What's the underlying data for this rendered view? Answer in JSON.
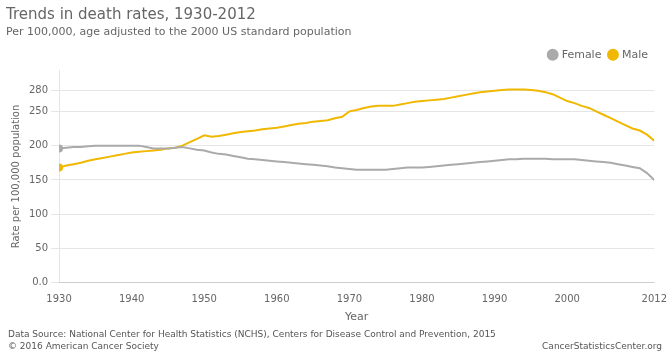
{
  "chart_data": {
    "type": "line",
    "title": "Trends in death rates, 1930-2012",
    "subtitle": "Per 100,000, age adjusted to the 2000 US standard population",
    "xlabel": "Year",
    "ylabel": "Rate per 100,000 population",
    "annotations": [
      "Data Source: National Center for Health Statistics (NCHS), Centers for Disease Control and Prevention, 2015",
      "© 2016 American Cancer Society",
      "CancerStatisticsCenter.org"
    ],
    "x": [
      1930,
      1931,
      1932,
      1933,
      1934,
      1935,
      1936,
      1937,
      1938,
      1939,
      1940,
      1941,
      1942,
      1943,
      1944,
      1945,
      1946,
      1947,
      1948,
      1949,
      1950,
      1951,
      1952,
      1953,
      1954,
      1955,
      1956,
      1957,
      1958,
      1959,
      1960,
      1961,
      1962,
      1963,
      1964,
      1965,
      1966,
      1967,
      1968,
      1969,
      1970,
      1971,
      1972,
      1973,
      1974,
      1975,
      1976,
      1977,
      1978,
      1979,
      1980,
      1981,
      1982,
      1983,
      1984,
      1985,
      1986,
      1987,
      1988,
      1989,
      1990,
      1991,
      1992,
      1993,
      1994,
      1995,
      1996,
      1997,
      1998,
      1999,
      2000,
      2001,
      2002,
      2003,
      2004,
      2005,
      2006,
      2007,
      2008,
      2009,
      2010,
      2011,
      2012
    ],
    "series": [
      {
        "name": "Female",
        "color": "#aaaaaa",
        "values": [
          196,
          197,
          198,
          198,
          199,
          200,
          200,
          200,
          200,
          200,
          200,
          200,
          198,
          196,
          196,
          196,
          197,
          198,
          196,
          194,
          193,
          190,
          188,
          187,
          185,
          183,
          181,
          180,
          179,
          178,
          177,
          176,
          175,
          174,
          173,
          172,
          171,
          170,
          168,
          167,
          166,
          165,
          165,
          165,
          165,
          165,
          166,
          167,
          168,
          168,
          168,
          169,
          170,
          171,
          172,
          173,
          174,
          175,
          176,
          177,
          178,
          179,
          180,
          180,
          181,
          181,
          181,
          181,
          180,
          180,
          180,
          180,
          179,
          178,
          177,
          176,
          175,
          173,
          171,
          169,
          167,
          160,
          150
        ]
      },
      {
        "name": "Male",
        "color": "#f0b800",
        "values": [
          168,
          171,
          173,
          175,
          178,
          180,
          182,
          184,
          186,
          188,
          190,
          191,
          192,
          193,
          194,
          196,
          197,
          200,
          205,
          210,
          215,
          213,
          214,
          216,
          218,
          220,
          221,
          222,
          224,
          225,
          226,
          228,
          230,
          232,
          233,
          235,
          236,
          237,
          240,
          242,
          250,
          252,
          255,
          257,
          258,
          258,
          258,
          260,
          262,
          264,
          265,
          266,
          267,
          268,
          270,
          272,
          274,
          276,
          278,
          279,
          280,
          281,
          282,
          282,
          282,
          281,
          280,
          278,
          275,
          270,
          265,
          262,
          258,
          255,
          250,
          245,
          240,
          235,
          230,
          225,
          222,
          216,
          207
        ]
      }
    ],
    "xlim": [
      1930,
      2012
    ],
    "xticks": [
      1930,
      1940,
      1950,
      1960,
      1970,
      1980,
      1990,
      2000,
      2012
    ],
    "ylim": [
      0,
      310
    ],
    "yticks": [
      {
        "value": 0,
        "label": "0.0"
      },
      50,
      100,
      150,
      200,
      250,
      280
    ],
    "grid": "y",
    "legend": "upper right"
  }
}
